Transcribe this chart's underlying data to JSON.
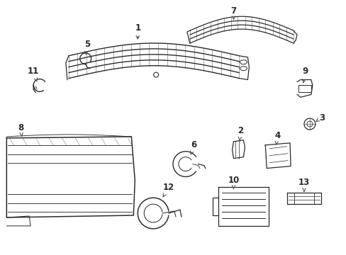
{
  "bg_color": "#ffffff",
  "line_color": "#2a2a2a",
  "label_color": "#2a2a2a",
  "lw": 0.9
}
